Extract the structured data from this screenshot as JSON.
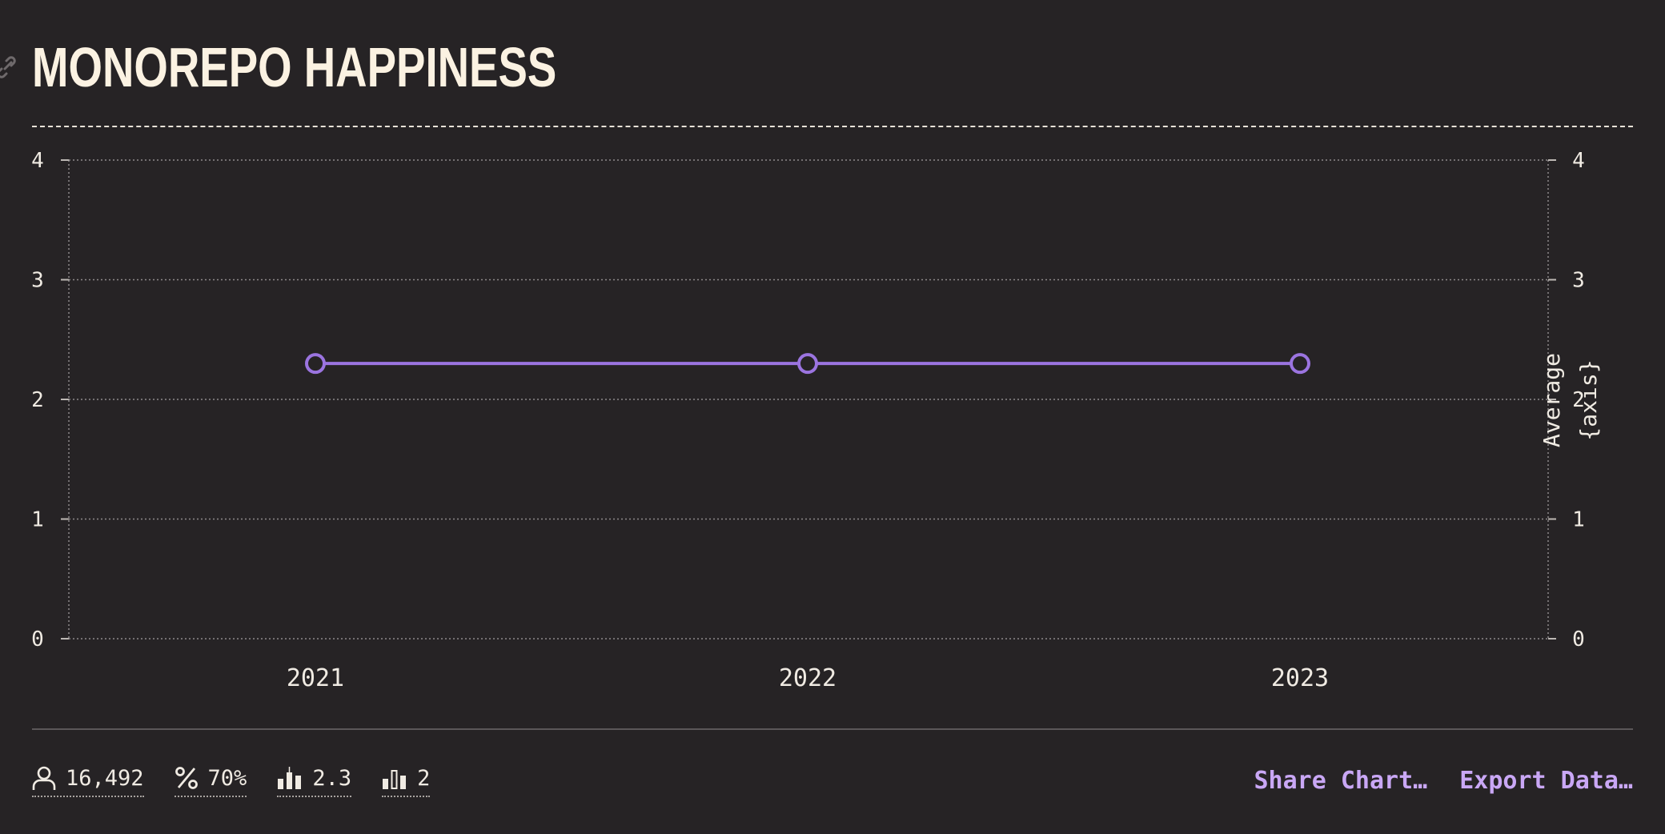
{
  "title": "MONOREPO HAPPINESS",
  "icons": {
    "link": "link-icon",
    "respondents": "person-icon",
    "percentage": "percent-icon",
    "average": "bar-average-icon",
    "median": "bar-median-icon"
  },
  "stats": {
    "respondents": "16,492",
    "percentage": "70%",
    "average": "2.3",
    "median": "2"
  },
  "actions": {
    "share": "Share Chart…",
    "export": "Export Data…"
  },
  "colors": {
    "background": "#262325",
    "series": "#9b74e0",
    "accent": "#c9a7f5",
    "title": "#fbf2e2"
  },
  "chart_data": {
    "type": "line",
    "categories": [
      "2021",
      "2022",
      "2023"
    ],
    "series": [
      {
        "values": [
          2.3,
          2.3,
          2.3
        ]
      }
    ],
    "y_ticks": [
      "0",
      "1",
      "2",
      "3",
      "4"
    ],
    "ylim": [
      0,
      4
    ],
    "y2label_line1": "Average",
    "y2label_line2": "{axis}",
    "grid": true
  }
}
